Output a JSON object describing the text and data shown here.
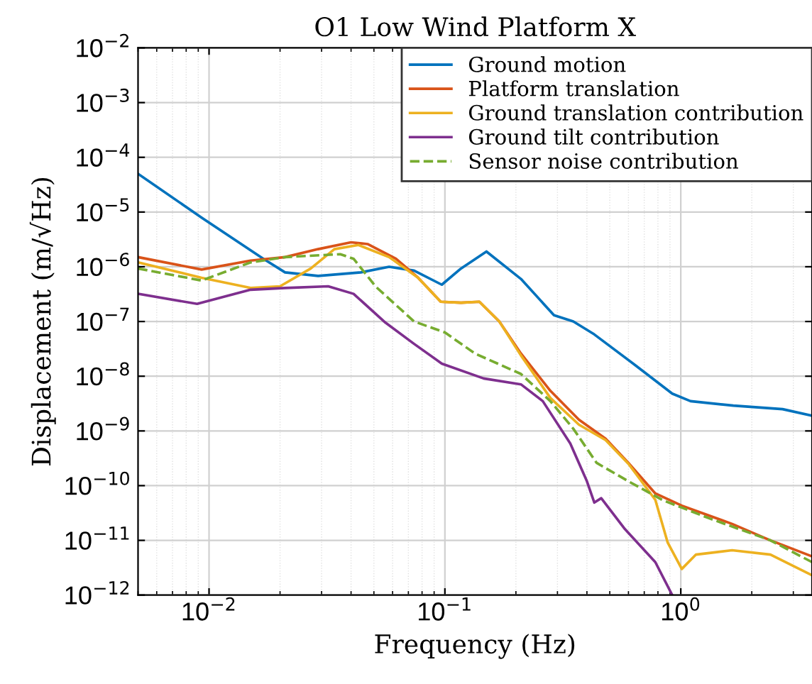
{
  "chart_data": {
    "type": "line",
    "title": "O1 Low Wind Platform X",
    "xlabel": "Frequency (Hz)",
    "ylabel": "Displacement (m/√Hz)",
    "log": "xy",
    "grid": true,
    "legend": "top right",
    "line_style": "solid",
    "marker": "none",
    "xlim": [
      0.005,
      3.6
    ],
    "ylim": [
      1e-12,
      0.01
    ],
    "xticks": [
      {
        "value": 0.01,
        "label": "10$^{−2}$"
      },
      {
        "value": 0.1,
        "label": "10$^{−1}$"
      },
      {
        "value": 1,
        "label": "10$^{0}$"
      }
    ],
    "yticks": [
      {
        "value": 1e-12,
        "label": "10$^{−12}$"
      },
      {
        "value": 1e-11,
        "label": "10$^{−11}$"
      },
      {
        "value": 1e-10,
        "label": "10$^{−10}$"
      },
      {
        "value": 1e-09,
        "label": "10$^{−9}$"
      },
      {
        "value": 1e-08,
        "label": "10$^{−8}$"
      },
      {
        "value": 1e-07,
        "label": "10$^{−7}$"
      },
      {
        "value": 1e-06,
        "label": "10$^{−6}$"
      },
      {
        "value": 1e-05,
        "label": "10$^{−5}$"
      },
      {
        "value": 0.0001,
        "label": "10$^{−4}$"
      },
      {
        "value": 0.001,
        "label": "10$^{−3}$"
      },
      {
        "value": 0.01,
        "label": "10$^{−2}$"
      }
    ],
    "series": [
      {
        "name": "Ground motion",
        "color": "#0072bd",
        "x": [
          0.005,
          0.0093,
          0.017,
          0.021,
          0.029,
          0.044,
          0.058,
          0.074,
          0.097,
          0.117,
          0.15,
          0.21,
          0.29,
          0.35,
          0.43,
          0.64,
          0.92,
          1.1,
          1.67,
          2.7,
          3.6
        ],
        "values": [
          5e-05,
          7.9e-06,
          1.4e-06,
          7.9e-07,
          6.8e-07,
          7.9e-07,
          1e-06,
          8.5e-07,
          4.7e-07,
          9.3e-07,
          1.9e-06,
          6e-07,
          1.3e-07,
          1e-07,
          5.8e-08,
          1.6e-08,
          4.8e-09,
          3.5e-09,
          2.9e-09,
          2.5e-09,
          1.9e-09
        ]
      },
      {
        "name": "Platform translation",
        "color": "#d95319",
        "x": [
          0.005,
          0.0093,
          0.015,
          0.021,
          0.029,
          0.04,
          0.047,
          0.062,
          0.077,
          0.096,
          0.117,
          0.14,
          0.17,
          0.21,
          0.28,
          0.37,
          0.48,
          0.6,
          0.78,
          1.01,
          1.65,
          2.4,
          3.6
        ],
        "values": [
          1.5e-06,
          8.9e-07,
          1.3e-06,
          1.5e-06,
          2.1e-06,
          2.8e-06,
          2.6e-06,
          1.4e-06,
          6.3e-07,
          2.3e-07,
          2.2e-07,
          2.3e-07,
          1e-07,
          2.6e-08,
          5.4e-09,
          1.6e-09,
          7.2e-10,
          2.6e-10,
          7.2e-11,
          4.3e-11,
          2e-11,
          1e-11,
          5.1e-12
        ]
      },
      {
        "name": "Ground translation contribution",
        "color": "#edb120",
        "x": [
          0.005,
          0.0093,
          0.015,
          0.02,
          0.027,
          0.034,
          0.043,
          0.058,
          0.077,
          0.096,
          0.117,
          0.14,
          0.17,
          0.21,
          0.28,
          0.37,
          0.48,
          0.6,
          0.78,
          0.88,
          1.01,
          1.16,
          1.65,
          2.4,
          3.6
        ],
        "values": [
          1.2e-06,
          6.3e-07,
          4.1e-07,
          4.4e-07,
          9.3e-07,
          2.1e-06,
          2.5e-06,
          1.5e-06,
          6.3e-07,
          2.3e-07,
          2.2e-07,
          2.3e-07,
          1e-07,
          2.4e-08,
          4e-09,
          1.3e-09,
          6.8e-10,
          2.5e-10,
          5.5e-11,
          9.1e-12,
          3e-12,
          5.5e-12,
          6.6e-12,
          5.5e-12,
          2.3e-12
        ]
      },
      {
        "name": "Ground tilt contribution",
        "color": "#7e2f8e",
        "x": [
          0.005,
          0.0089,
          0.015,
          0.021,
          0.032,
          0.041,
          0.056,
          0.074,
          0.097,
          0.146,
          0.21,
          0.26,
          0.34,
          0.4,
          0.43,
          0.46,
          0.58,
          0.78,
          0.92
        ],
        "values": [
          3.2e-07,
          2.1e-07,
          3.8e-07,
          4.1e-07,
          4.4e-07,
          3.2e-07,
          9.5e-08,
          3.9e-08,
          1.7e-08,
          9.1e-09,
          7.1e-09,
          3.5e-09,
          5.9e-10,
          1.2e-10,
          4.9e-11,
          5.9e-11,
          1.6e-11,
          4e-12,
          1e-12
        ]
      },
      {
        "name": "Sensor noise contribution",
        "color": "#77ac30",
        "line_style": "dashed",
        "x": [
          0.005,
          0.0093,
          0.015,
          0.021,
          0.036,
          0.041,
          0.051,
          0.074,
          0.1,
          0.134,
          0.21,
          0.28,
          0.35,
          0.44,
          0.6,
          0.84,
          1.33,
          2.4,
          3.6
        ],
        "values": [
          9.3e-07,
          5.6e-07,
          1.2e-06,
          1.5e-06,
          1.7e-06,
          1.4e-06,
          4.3e-07,
          1e-07,
          6.3e-08,
          2.6e-08,
          1.1e-08,
          3.5e-09,
          1.1e-09,
          2.6e-10,
          1.2e-10,
          5.4e-11,
          2.5e-11,
          1e-11,
          4e-12
        ]
      }
    ]
  }
}
